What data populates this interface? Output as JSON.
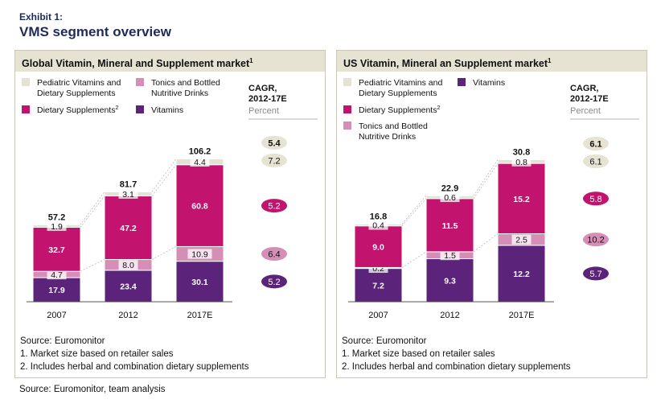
{
  "exhibit_label": "Exhibit 1:",
  "title": "VMS segment overview",
  "source_note": "Source: Euromonitor, team analysis",
  "colors": {
    "pediatric": "#e4e2d2",
    "dietary": "#c2136f",
    "tonics": "#d58fb7",
    "vitamins": "#5b2379",
    "panel_header": "#e6e3d3",
    "cagr_light": "#e6e3d3"
  },
  "chart_data": [
    {
      "type": "bar",
      "stacked": true,
      "title": "Global Vitamin, Mineral and Supplement market",
      "title_footnote": "1",
      "categories": [
        "2007",
        "2012",
        "2017E"
      ],
      "totals": [
        "57.2",
        "81.7",
        "106.2"
      ],
      "ylim": [
        0,
        110
      ],
      "legend": [
        {
          "key": "pediatric",
          "label_lines": [
            "Pediatric Vitamins and",
            "Dietary Supplements"
          ]
        },
        {
          "key": "tonics",
          "label_lines": [
            "Tonics and Bottled",
            "Nutritive Drinks"
          ]
        },
        {
          "key": "dietary",
          "label_lines": [
            "Dietary Supplements"
          ],
          "footnote": "2"
        },
        {
          "key": "vitamins",
          "label_lines": [
            "Vitamins"
          ]
        }
      ],
      "series": [
        {
          "name": "Vitamins",
          "key": "vitamins",
          "values": [
            17.9,
            23.4,
            30.1
          ],
          "labels": [
            "17.9",
            "23.4",
            "30.1"
          ]
        },
        {
          "name": "Tonics and Bottled Nutritive Drinks",
          "key": "tonics",
          "values": [
            4.7,
            8.0,
            10.9
          ],
          "labels": [
            "4.7",
            "8.0",
            "10.9"
          ]
        },
        {
          "name": "Dietary Supplements",
          "key": "dietary",
          "values": [
            32.7,
            47.2,
            60.8
          ],
          "labels": [
            "32.7",
            "47.2",
            "60.8"
          ]
        },
        {
          "name": "Pediatric Vitamins and Dietary Supplements",
          "key": "pediatric",
          "values": [
            1.9,
            3.1,
            4.4
          ],
          "labels": [
            "1.9",
            "3.1",
            "4.4"
          ]
        }
      ],
      "cagr": {
        "title_lines": [
          "CAGR,",
          "2012-17E"
        ],
        "subtitle": "Percent",
        "total": "5.4",
        "by_series": {
          "pediatric": "7.2",
          "dietary": "5.2",
          "tonics": "6.4",
          "vitamins": "5.2"
        }
      },
      "footnotes": [
        "Source: Euromonitor",
        "1. Market size based on retailer sales",
        "2. Includes herbal and combination dietary supplements"
      ]
    },
    {
      "type": "bar",
      "stacked": true,
      "title": "US Vitamin, Mineral an Supplement market",
      "title_footnote": "1",
      "categories": [
        "2007",
        "2012",
        "2017E"
      ],
      "totals": [
        "16.8",
        "22.9",
        "30.8"
      ],
      "ylim": [
        0,
        32
      ],
      "legend": [
        {
          "key": "pediatric",
          "label_lines": [
            "Pediatric Vitamins and",
            "Dietary Supplements"
          ]
        },
        {
          "key": "vitamins",
          "label_lines": [
            "Vitamins"
          ]
        },
        {
          "key": "dietary",
          "label_lines": [
            "Dietary Supplements"
          ],
          "footnote": "2"
        },
        {
          "key": "tonics",
          "label_lines": [
            "Tonics and Bottled",
            "Nutritive Drinks"
          ]
        }
      ],
      "series": [
        {
          "name": "Vitamins",
          "key": "vitamins",
          "values": [
            7.2,
            9.3,
            12.2
          ],
          "labels": [
            "7.2",
            "9.3",
            "12.2"
          ]
        },
        {
          "name": "Tonics and Bottled Nutritive Drinks",
          "key": "tonics",
          "values": [
            0.2,
            1.5,
            2.5
          ],
          "labels": [
            "0.2",
            "1.5",
            "2.5"
          ]
        },
        {
          "name": "Dietary Supplements",
          "key": "dietary",
          "values": [
            9.0,
            11.5,
            15.2
          ],
          "labels": [
            "9.0",
            "11.5",
            "15.2"
          ]
        },
        {
          "name": "Pediatric Vitamins and Dietary Supplements",
          "key": "pediatric",
          "values": [
            0.4,
            0.6,
            0.8
          ],
          "labels": [
            "0.4",
            "0.6",
            "0.8"
          ]
        }
      ],
      "cagr": {
        "title_lines": [
          "CAGR,",
          "2012-17E"
        ],
        "subtitle": "Percent",
        "total": "6.1",
        "by_series": {
          "pediatric": "6.1",
          "dietary": "5.8",
          "tonics": "10.2",
          "vitamins": "5.7"
        }
      },
      "footnotes": [
        "Source: Euromonitor",
        "1. Market size based on retailer sales",
        "2. Includes herbal and combination dietary supplements"
      ]
    }
  ]
}
